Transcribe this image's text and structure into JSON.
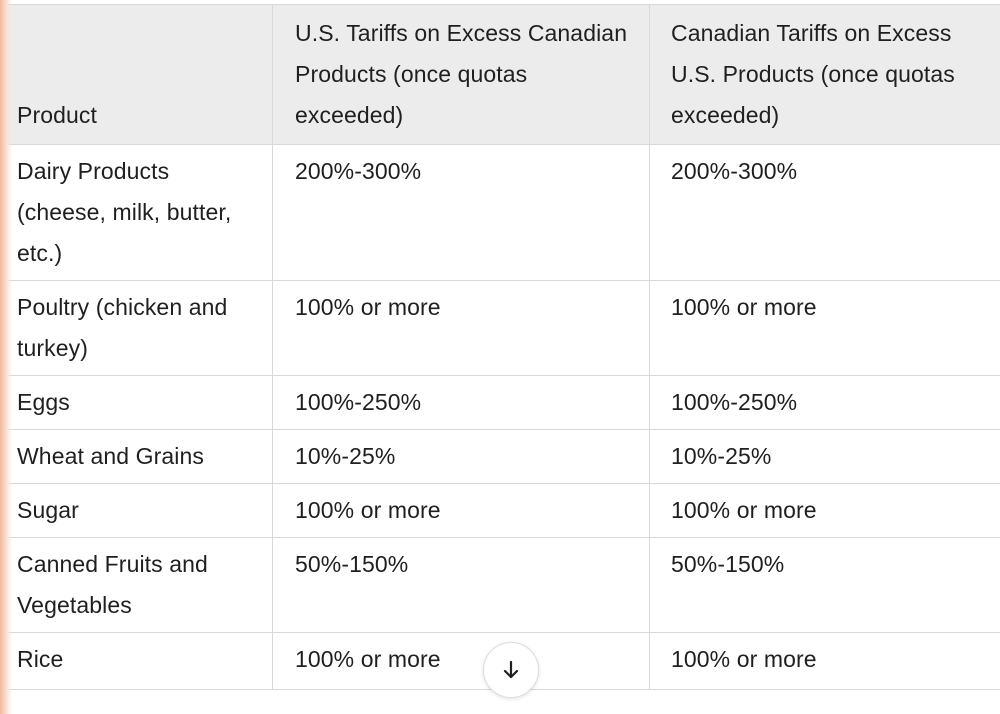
{
  "table": {
    "headers": [
      "Product",
      "U.S. Tariffs on Excess Canadian Products (once quotas exceeded)",
      "Canadian Tariffs on Excess U.S. Products (once quotas exceeded)"
    ],
    "rows": [
      [
        "Dairy Products (cheese, milk, butter, etc.)",
        "200%-300%",
        "200%-300%"
      ],
      [
        "Poultry (chicken and turkey)",
        "100% or more",
        "100% or more"
      ],
      [
        "Eggs",
        "100%-250%",
        "100%-250%"
      ],
      [
        "Wheat and Grains",
        "10%-25%",
        "10%-25%"
      ],
      [
        "Sugar",
        "100% or more",
        "100% or more"
      ],
      [
        "Canned Fruits and Vegetables",
        "50%-150%",
        "50%-150%"
      ],
      [
        "Rice",
        "100% or more",
        "100% or more"
      ]
    ]
  },
  "scroll_button": {
    "icon": "arrow-down-icon"
  },
  "colors": {
    "header_background": "#ececec",
    "border": "#d9d9d9",
    "text": "#1f1f1f",
    "edge_glow": "#f6b79c"
  }
}
